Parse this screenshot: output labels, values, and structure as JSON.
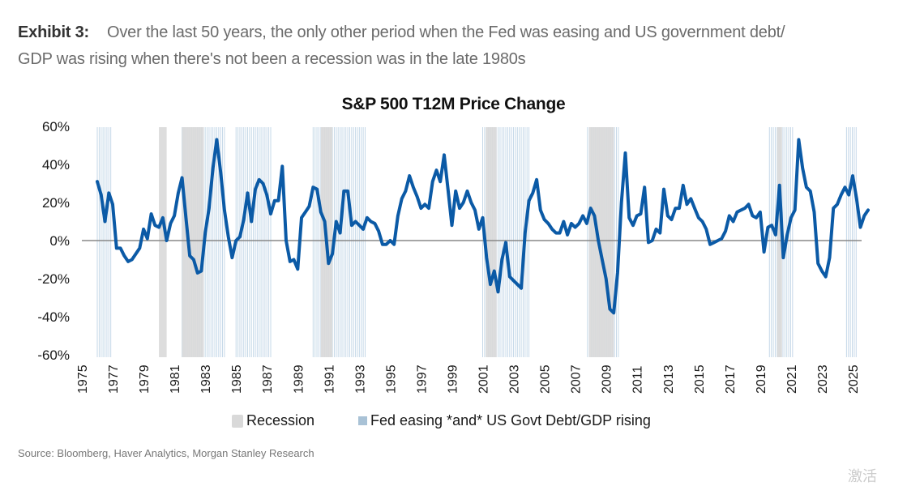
{
  "exhibit": {
    "label": "Exhibit 3:",
    "text_line1": "Over the last 50 years, the only other period when the Fed was easing and US government debt/",
    "text_line2": "GDP was rising when there's not been a recession was in the late 1980s"
  },
  "legend": {
    "recession_label": "Recession",
    "fed_label": "Fed easing *and* US Govt Debt/GDP rising"
  },
  "source": "Source: Bloomberg, Haver Analytics, Morgan Stanley Research",
  "watermark": "激活",
  "colors": {
    "line": "#0b5aa6",
    "recession": "#d9d9d9",
    "fed_easing": "#c5d8e8",
    "zero_line": "#888888"
  },
  "chart_data": {
    "type": "line",
    "title": "S&P 500 T12M Price Change",
    "xlabel": "",
    "ylabel": "",
    "ylim": [
      -60,
      60
    ],
    "xlim": [
      1975,
      2025.9
    ],
    "yticks": [
      60,
      40,
      20,
      0,
      -20,
      -40,
      -60
    ],
    "ytick_labels": [
      "60%",
      "40%",
      "20%",
      "0%",
      "-20%",
      "-40%",
      "-60%"
    ],
    "xtick_labels": [
      "1975",
      "1977",
      "1979",
      "1981",
      "1983",
      "1985",
      "1987",
      "1989",
      "1991",
      "1993",
      "1995",
      "1997",
      "1999",
      "2001",
      "2003",
      "2005",
      "2007",
      "2009",
      "2011",
      "2013",
      "2015",
      "2017",
      "2019",
      "2021",
      "2023",
      "2025"
    ],
    "grid": false,
    "legend_position": "bottom",
    "series": [
      {
        "name": "S&P 500 T12M Price Change",
        "points": [
          [
            1976.0,
            31
          ],
          [
            1976.25,
            24
          ],
          [
            1976.5,
            10
          ],
          [
            1976.75,
            25
          ],
          [
            1977.0,
            19
          ],
          [
            1977.25,
            -4
          ],
          [
            1977.5,
            -4
          ],
          [
            1977.75,
            -8
          ],
          [
            1978.0,
            -11
          ],
          [
            1978.25,
            -10
          ],
          [
            1978.5,
            -7
          ],
          [
            1978.75,
            -4
          ],
          [
            1979.0,
            6
          ],
          [
            1979.25,
            1
          ],
          [
            1979.5,
            14
          ],
          [
            1979.75,
            8
          ],
          [
            1980.0,
            7
          ],
          [
            1980.25,
            12
          ],
          [
            1980.5,
            0
          ],
          [
            1980.75,
            9
          ],
          [
            1981.0,
            13
          ],
          [
            1981.25,
            25
          ],
          [
            1981.5,
            33
          ],
          [
            1981.75,
            12
          ],
          [
            1982.0,
            -8
          ],
          [
            1982.25,
            -10
          ],
          [
            1982.5,
            -17
          ],
          [
            1982.75,
            -16
          ],
          [
            1983.0,
            4
          ],
          [
            1983.25,
            17
          ],
          [
            1983.5,
            38
          ],
          [
            1983.75,
            53
          ],
          [
            1984.0,
            36
          ],
          [
            1984.25,
            16
          ],
          [
            1984.5,
            2
          ],
          [
            1984.75,
            -9
          ],
          [
            1985.0,
            0
          ],
          [
            1985.25,
            2
          ],
          [
            1985.5,
            11
          ],
          [
            1985.75,
            25
          ],
          [
            1986.0,
            10
          ],
          [
            1986.25,
            27
          ],
          [
            1986.5,
            32
          ],
          [
            1986.75,
            30
          ],
          [
            1987.0,
            24
          ],
          [
            1987.25,
            14
          ],
          [
            1987.5,
            21
          ],
          [
            1987.75,
            21
          ],
          [
            1988.0,
            39
          ],
          [
            1988.25,
            0
          ],
          [
            1988.5,
            -11
          ],
          [
            1988.75,
            -10
          ],
          [
            1989.0,
            -15
          ],
          [
            1989.25,
            12
          ],
          [
            1989.5,
            15
          ],
          [
            1989.75,
            18
          ],
          [
            1990.0,
            28
          ],
          [
            1990.25,
            27
          ],
          [
            1990.5,
            15
          ],
          [
            1990.75,
            10
          ],
          [
            1991.0,
            -12
          ],
          [
            1991.25,
            -7
          ],
          [
            1991.5,
            10
          ],
          [
            1991.75,
            4
          ],
          [
            1992.0,
            26
          ],
          [
            1992.25,
            26
          ],
          [
            1992.5,
            8
          ],
          [
            1992.75,
            10
          ],
          [
            1993.0,
            8
          ],
          [
            1993.25,
            6
          ],
          [
            1993.5,
            12
          ],
          [
            1993.75,
            10
          ],
          [
            1994.0,
            9
          ],
          [
            1994.25,
            5
          ],
          [
            1994.5,
            -2
          ],
          [
            1994.75,
            -2
          ],
          [
            1995.0,
            0
          ],
          [
            1995.25,
            -2
          ],
          [
            1995.5,
            13
          ],
          [
            1995.75,
            22
          ],
          [
            1996.0,
            26
          ],
          [
            1996.25,
            34
          ],
          [
            1996.5,
            28
          ],
          [
            1996.75,
            23
          ],
          [
            1997.0,
            17
          ],
          [
            1997.25,
            19
          ],
          [
            1997.5,
            17
          ],
          [
            1997.75,
            31
          ],
          [
            1998.0,
            37
          ],
          [
            1998.25,
            31
          ],
          [
            1998.5,
            45
          ],
          [
            1998.75,
            27
          ],
          [
            1999.0,
            8
          ],
          [
            1999.25,
            26
          ],
          [
            1999.5,
            17
          ],
          [
            1999.75,
            20
          ],
          [
            2000.0,
            26
          ],
          [
            2000.25,
            20
          ],
          [
            2000.5,
            16
          ],
          [
            2000.75,
            6
          ],
          [
            2001.0,
            12
          ],
          [
            2001.25,
            -9
          ],
          [
            2001.5,
            -23
          ],
          [
            2001.75,
            -16
          ],
          [
            2002.0,
            -27
          ],
          [
            2002.25,
            -10
          ],
          [
            2002.5,
            -1
          ],
          [
            2002.75,
            -19
          ],
          [
            2003.0,
            -21
          ],
          [
            2003.25,
            -23
          ],
          [
            2003.5,
            -25
          ],
          [
            2003.75,
            4
          ],
          [
            2004.0,
            21
          ],
          [
            2004.25,
            25
          ],
          [
            2004.5,
            32
          ],
          [
            2004.75,
            16
          ],
          [
            2005.0,
            11
          ],
          [
            2005.25,
            9
          ],
          [
            2005.5,
            6
          ],
          [
            2005.75,
            4
          ],
          [
            2006.0,
            4
          ],
          [
            2006.25,
            10
          ],
          [
            2006.5,
            3
          ],
          [
            2006.75,
            9
          ],
          [
            2007.0,
            7
          ],
          [
            2007.25,
            9
          ],
          [
            2007.5,
            13
          ],
          [
            2007.75,
            9
          ],
          [
            2008.0,
            17
          ],
          [
            2008.25,
            13
          ],
          [
            2008.5,
            0
          ],
          [
            2008.75,
            -10
          ],
          [
            2009.0,
            -20
          ],
          [
            2009.25,
            -36
          ],
          [
            2009.5,
            -38
          ],
          [
            2009.75,
            -17
          ],
          [
            2010.0,
            20
          ],
          [
            2010.25,
            46
          ],
          [
            2010.5,
            12
          ],
          [
            2010.75,
            8
          ],
          [
            2011.0,
            13
          ],
          [
            2011.25,
            14
          ],
          [
            2011.5,
            28
          ],
          [
            2011.75,
            -1
          ],
          [
            2012.0,
            0
          ],
          [
            2012.25,
            6
          ],
          [
            2012.5,
            4
          ],
          [
            2012.75,
            27
          ],
          [
            2013.0,
            13
          ],
          [
            2013.25,
            11
          ],
          [
            2013.5,
            17
          ],
          [
            2013.75,
            17
          ],
          [
            2014.0,
            29
          ],
          [
            2014.25,
            19
          ],
          [
            2014.5,
            22
          ],
          [
            2014.75,
            17
          ],
          [
            2015.0,
            12
          ],
          [
            2015.25,
            10
          ],
          [
            2015.5,
            6
          ],
          [
            2015.75,
            -2
          ],
          [
            2016.0,
            -1
          ],
          [
            2016.25,
            0
          ],
          [
            2016.5,
            1
          ],
          [
            2016.75,
            5
          ],
          [
            2017.0,
            13
          ],
          [
            2017.25,
            10
          ],
          [
            2017.5,
            15
          ],
          [
            2017.75,
            16
          ],
          [
            2018.0,
            17
          ],
          [
            2018.25,
            19
          ],
          [
            2018.5,
            13
          ],
          [
            2018.75,
            12
          ],
          [
            2019.0,
            15
          ],
          [
            2019.25,
            -6
          ],
          [
            2019.5,
            7
          ],
          [
            2019.75,
            8
          ],
          [
            2020.0,
            3
          ],
          [
            2020.25,
            29
          ],
          [
            2020.5,
            -9
          ],
          [
            2020.75,
            3
          ],
          [
            2021.0,
            12
          ],
          [
            2021.25,
            16
          ],
          [
            2021.5,
            53
          ],
          [
            2021.75,
            38
          ],
          [
            2022.0,
            28
          ],
          [
            2022.25,
            26
          ],
          [
            2022.5,
            15
          ],
          [
            2022.75,
            -12
          ],
          [
            2023.0,
            -16
          ],
          [
            2023.25,
            -19
          ],
          [
            2023.5,
            -9
          ],
          [
            2023.75,
            17
          ],
          [
            2024.0,
            19
          ],
          [
            2024.25,
            24
          ],
          [
            2024.5,
            28
          ],
          [
            2024.75,
            24
          ],
          [
            2025.0,
            34
          ],
          [
            2025.25,
            22
          ],
          [
            2025.5,
            7
          ],
          [
            2025.75,
            13
          ],
          [
            2026.0,
            16
          ]
        ]
      }
    ],
    "shaded_regions": {
      "recession": [
        [
          1980.0,
          1980.5
        ],
        [
          1981.5,
          1982.9
        ],
        [
          1990.5,
          1991.25
        ],
        [
          2001.2,
          2001.9
        ],
        [
          2007.9,
          2009.5
        ],
        [
          2020.1,
          2020.4
        ]
      ],
      "fed_easing_and_debt_rising": [
        [
          1976.0,
          1976.9
        ],
        [
          1981.5,
          1984.3
        ],
        [
          1985.0,
          1987.3
        ],
        [
          1990.0,
          1993.4
        ],
        [
          2001.0,
          2004.0
        ],
        [
          2007.8,
          2009.9
        ],
        [
          2019.6,
          2021.2
        ],
        [
          2024.6,
          2025.3
        ]
      ]
    }
  }
}
